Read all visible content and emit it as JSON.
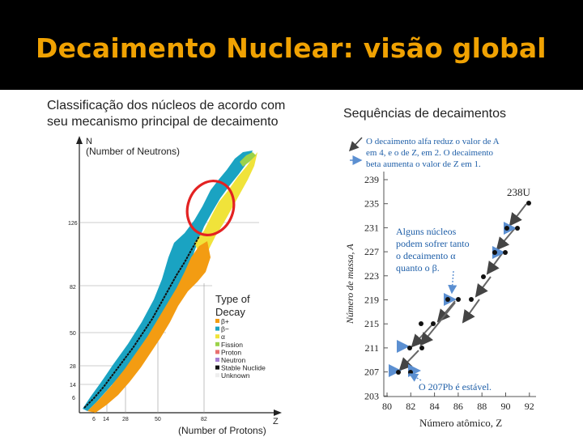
{
  "slide": {
    "title": "Decaimento Nuclear: visão global",
    "left_caption_line1": "Classificação dos núcleos de acordo com",
    "left_caption_line2": "seu mecanismo principal de decaimento",
    "right_caption": "Sequências de decaimentos"
  },
  "left_figure": {
    "y_axis_letter": "N",
    "y_axis_label": "(Number of Neutrons)",
    "x_axis_letter": "Z",
    "x_axis_label": "(Number of Protons)",
    "y_ticks": [
      "126",
      "82",
      "50",
      "28",
      "14",
      "6"
    ],
    "x_ticks": [
      "6",
      "14",
      "28",
      "50",
      "82"
    ],
    "legend_title_line1": "Type of",
    "legend_title_line2": "Decay",
    "legend": [
      {
        "label": "β+",
        "color": "#f39c12"
      },
      {
        "label": "β−",
        "color": "#1aa3c2"
      },
      {
        "label": "α",
        "color": "#f0e33a"
      },
      {
        "label": "Fission",
        "color": "#9bd24a"
      },
      {
        "label": "Proton",
        "color": "#e8706f"
      },
      {
        "label": "Neutron",
        "color": "#a77fd3"
      },
      {
        "label": "Stable Nuclide",
        "color": "#111111"
      },
      {
        "label": "Unknown",
        "color": "#eeeeee"
      }
    ],
    "highlight_color": "#e32222"
  },
  "right_figure": {
    "note_line1": "O decaimento alfa reduz o valor de A",
    "note_line2": "em 4, e o de Z, em 2. O decaimento",
    "note_line3": "beta aumenta o valor de Z em 1.",
    "start_label": "238U",
    "mid_note_line1": "Alguns núcleos",
    "mid_note_line2": "podem sofrer tanto",
    "mid_note_line3": "o decaimento α",
    "mid_note_line4": "quanto o β.",
    "end_label": "O 207Pb é estável.",
    "y_axis_label": "Número de massa, A",
    "x_axis_label": "Número atômico, Z",
    "y_ticks": [
      "239",
      "235",
      "231",
      "227",
      "223",
      "219",
      "215",
      "211",
      "207",
      "203"
    ],
    "x_ticks": [
      "80",
      "82",
      "84",
      "86",
      "88",
      "90",
      "92"
    ]
  }
}
